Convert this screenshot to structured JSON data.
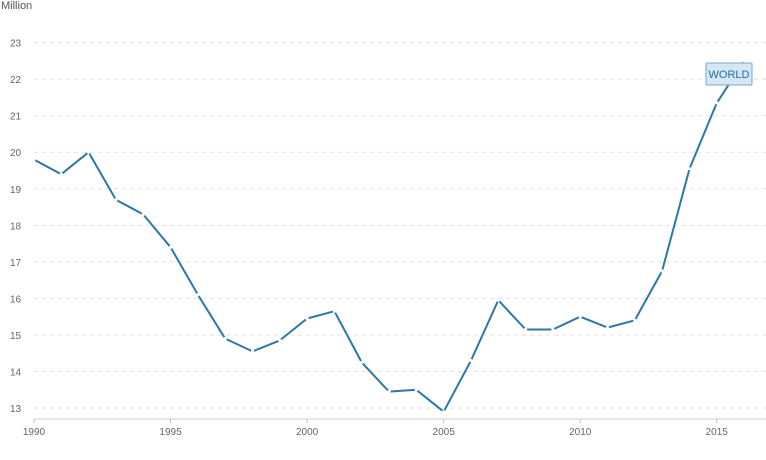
{
  "chart_data": {
    "type": "line",
    "unit_label": "Million",
    "x": [
      1990,
      1991,
      1992,
      1993,
      1994,
      1995,
      1996,
      1997,
      1998,
      1999,
      2000,
      2001,
      2002,
      2003,
      2004,
      2005,
      2006,
      2007,
      2008,
      2009,
      2010,
      2011,
      2012,
      2013,
      2014,
      2015,
      2016
    ],
    "x_ticks": [
      "1990",
      "1995",
      "2000",
      "2005",
      "2010",
      "2015"
    ],
    "y_ticks": [
      "13",
      "14",
      "15",
      "16",
      "17",
      "18",
      "19",
      "20",
      "21",
      "22",
      "23"
    ],
    "ylim": [
      12.7,
      23
    ],
    "series": [
      {
        "name": "WORLD",
        "color": "#2e77a6",
        "values": [
          19.8,
          19.4,
          20.0,
          18.7,
          18.3,
          17.4,
          16.1,
          14.9,
          14.55,
          14.85,
          15.45,
          15.65,
          14.25,
          13.45,
          13.5,
          12.9,
          14.3,
          15.95,
          15.15,
          15.15,
          15.5,
          15.2,
          15.4,
          16.75,
          19.55,
          21.35,
          22.5
        ]
      }
    ],
    "grid": true,
    "legend": "top-right"
  }
}
